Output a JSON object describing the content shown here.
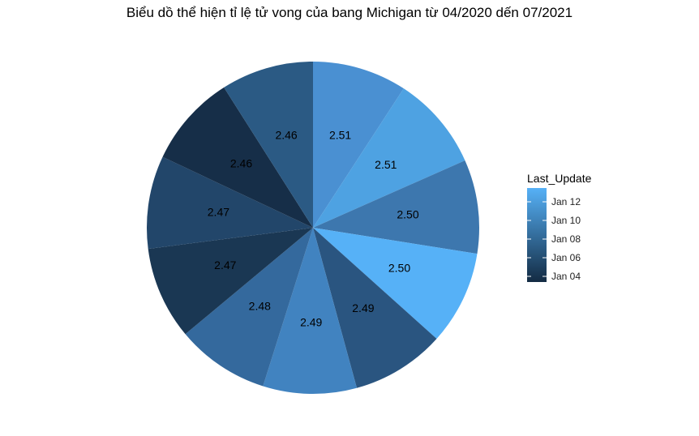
{
  "title": "Biểu dồ thể hiện tỉ lệ tử vong của bang Michigan từ 04/2020 dến 07/2021",
  "legend": {
    "title": "Last_Update",
    "ticks": [
      "Jan 12",
      "Jan 10",
      "Jan 08",
      "Jan 06",
      "Jan 04"
    ],
    "gradient_colors": [
      "#56B1F7",
      "#132B43"
    ]
  },
  "chart_data": {
    "type": "pie",
    "title": "Biểu dồ thể hiện tỉ lệ tử vong của bang Michigan từ 04/2020 dến 07/2021",
    "legend_title": "Last_Update",
    "legend_position": "right",
    "slices": [
      {
        "label": "2.51",
        "value": 2.51,
        "color": "#4A90D2"
      },
      {
        "label": "2.51",
        "value": 2.51,
        "color": "#4EA2E2"
      },
      {
        "label": "2.50",
        "value": 2.5,
        "color": "#3D77AE"
      },
      {
        "label": "2.50",
        "value": 2.5,
        "color": "#56B1F7"
      },
      {
        "label": "2.49",
        "value": 2.49,
        "color": "#2A5580"
      },
      {
        "label": "2.49",
        "value": 2.49,
        "color": "#4183C0"
      },
      {
        "label": "2.48",
        "value": 2.48,
        "color": "#34699D"
      },
      {
        "label": "2.47",
        "value": 2.47,
        "color": "#1A3753"
      },
      {
        "label": "2.47",
        "value": 2.47,
        "color": "#22466A"
      },
      {
        "label": "2.46",
        "value": 2.46,
        "color": "#162E48"
      },
      {
        "label": "2.46",
        "value": 2.46,
        "color": "#2B5A84"
      }
    ]
  }
}
